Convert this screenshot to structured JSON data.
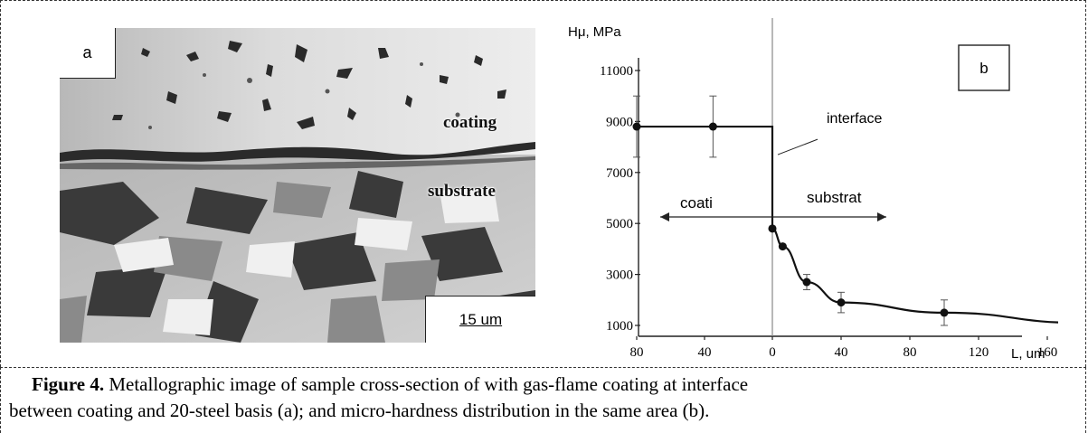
{
  "panel_a": {
    "label": "a",
    "coating_label": "coating",
    "substrate_label": "substrate",
    "scale_bar": "15 um"
  },
  "panel_b_label": "b",
  "chart_data": {
    "type": "line",
    "ylabel": "Hμ, MPa",
    "xlabel": "L, um",
    "y_ticks": [
      "1000",
      "3000",
      "5000",
      "7000",
      "9000",
      "11000"
    ],
    "ylim": [
      0,
      11500
    ],
    "x_tick_labels": [
      "80",
      "40",
      "0",
      "40",
      "80",
      "120",
      "160"
    ],
    "x_tick_positions": [
      -80,
      -40,
      0,
      40,
      80,
      120,
      160
    ],
    "series": [
      {
        "points": [
          {
            "x": -80,
            "y": 8800,
            "err": 1200
          },
          {
            "x": -35,
            "y": 8800,
            "err": 1200
          },
          {
            "x": 0,
            "y": 4800,
            "err": 0
          },
          {
            "x": 6,
            "y": 4100,
            "err": 0
          },
          {
            "x": 20,
            "y": 2700,
            "err": 300
          },
          {
            "x": 40,
            "y": 1900,
            "err": 400
          },
          {
            "x": 100,
            "y": 1500,
            "err": 500
          },
          {
            "x": 180,
            "y": 1100,
            "err": 600
          }
        ]
      }
    ],
    "annotations": {
      "interface": "interface",
      "coating_region": "coati",
      "substrate_region": "substrat"
    }
  },
  "caption": {
    "figure_label": "Figure 4.",
    "line1": " Metallographic image of sample cross-section of with gas-flame coating at interface",
    "line2": "between coating and 20-steel basis (a); and micro-hardness distribution in the same area (b)."
  }
}
